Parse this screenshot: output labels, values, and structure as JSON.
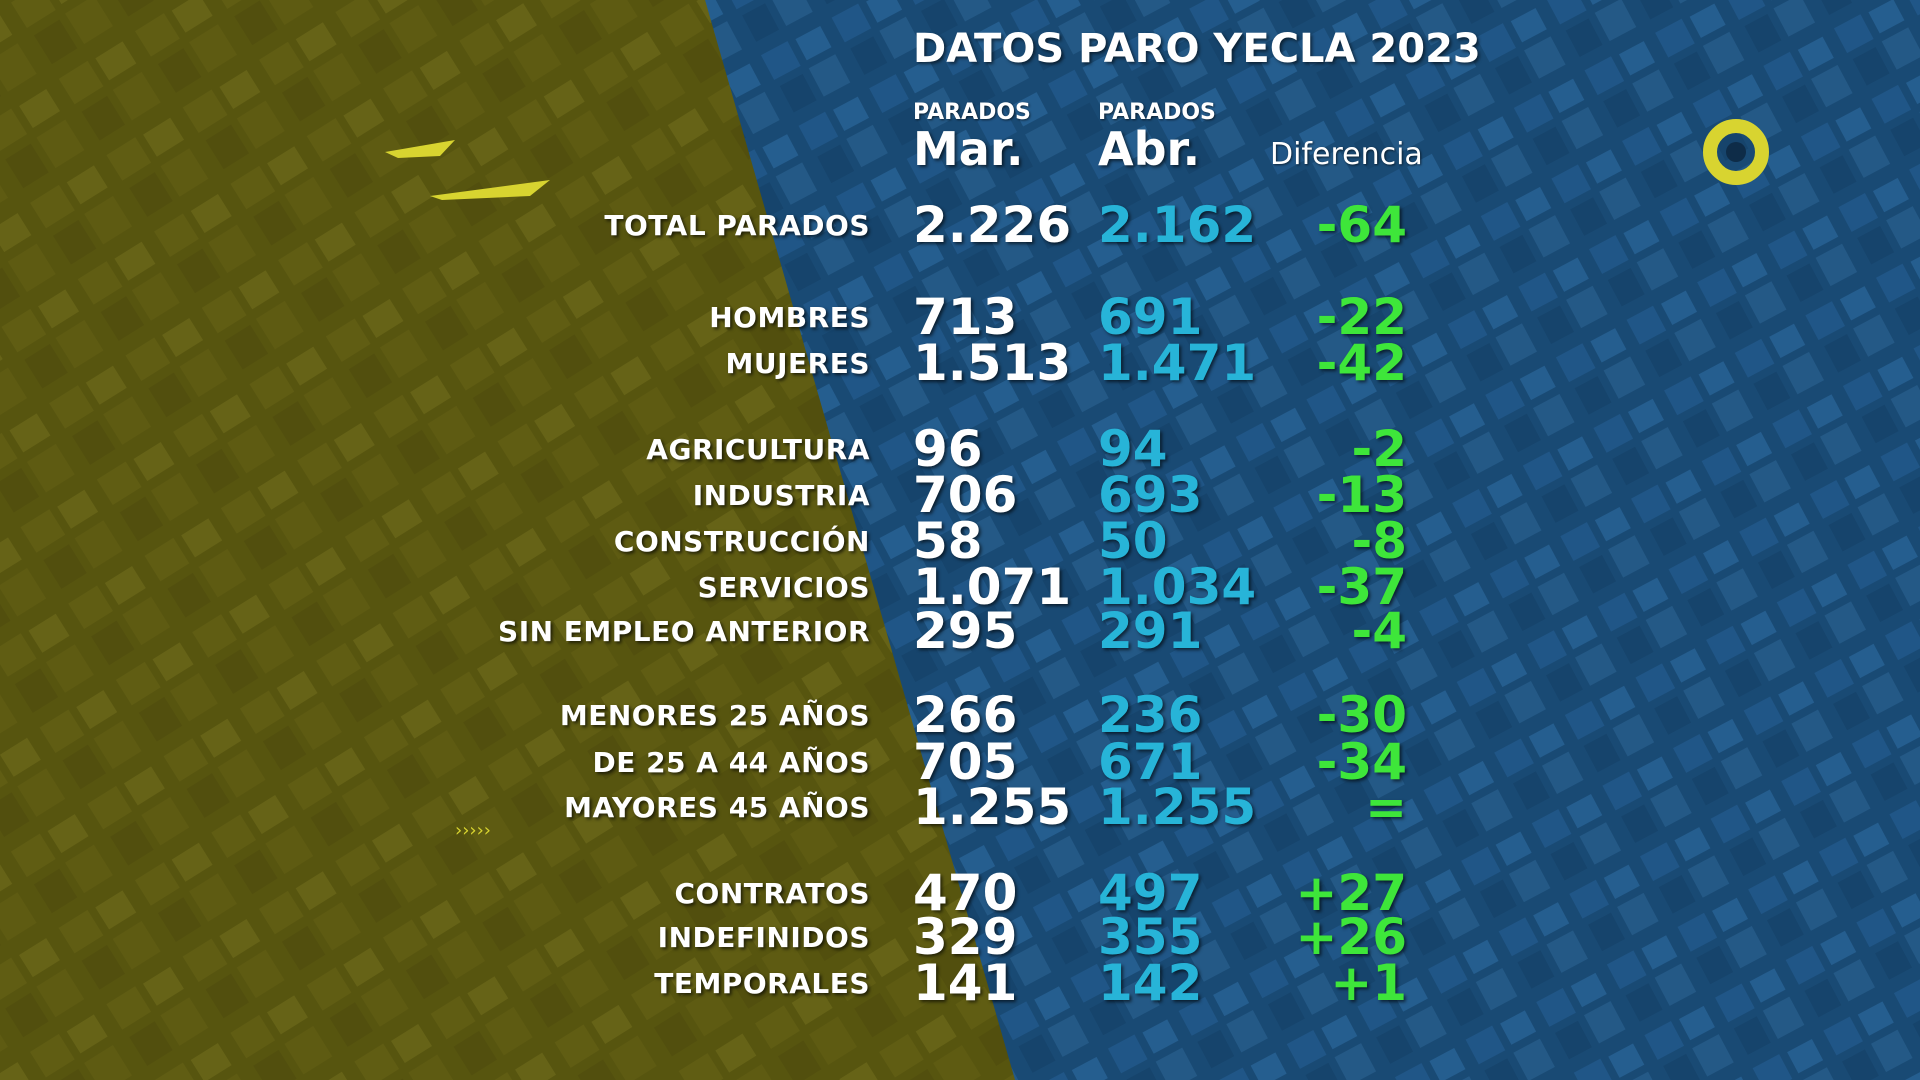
{
  "title": "DATOS PARO YECLA 2023",
  "columns": {
    "mar_small": "PARADOS",
    "mar_big": "Mar.",
    "abr_small": "PARADOS",
    "abr_big": "Abr.",
    "diff": "Diferencia"
  },
  "colors": {
    "left_panel": "#6e6a14",
    "right_panel": "#1f5a8c",
    "mar_text": "#ffffff",
    "abr_text": "#27b4d8",
    "diff_text": "#3ee63a"
  },
  "rows": [
    {
      "label": "TOTAL PARADOS",
      "mar": "2.226",
      "abr": "2.162",
      "diff": "-64"
    },
    {
      "label": "HOMBRES",
      "mar": "713",
      "abr": "691",
      "diff": "-22"
    },
    {
      "label": "MUJERES",
      "mar": "1.513",
      "abr": "1.471",
      "diff": "-42"
    },
    {
      "label": "AGRICULTURA",
      "mar": "96",
      "abr": "94",
      "diff": "-2"
    },
    {
      "label": "INDUSTRIA",
      "mar": "706",
      "abr": "693",
      "diff": "-13"
    },
    {
      "label": "CONSTRUCCIÓN",
      "mar": "58",
      "abr": "50",
      "diff": "-8"
    },
    {
      "label": "SERVICIOS",
      "mar": "1.071",
      "abr": "1.034",
      "diff": "-37"
    },
    {
      "label": "SIN EMPLEO ANTERIOR",
      "mar": "295",
      "abr": "291",
      "diff": "-4"
    },
    {
      "label": "MENORES  25 AÑOS",
      "mar": "266",
      "abr": "236",
      "diff": "-30"
    },
    {
      "label": "DE 25 A 44 AÑOS",
      "mar": "705",
      "abr": "671",
      "diff": "-34"
    },
    {
      "label": "MAYORES  45 AÑOS",
      "mar": "1.255",
      "abr": "1.255",
      "diff": "="
    },
    {
      "label": "CONTRATOS",
      "mar": "470",
      "abr": "497",
      "diff": "+27"
    },
    {
      "label": "INDEFINIDOS",
      "mar": "329",
      "abr": "355",
      "diff": "+26"
    },
    {
      "label": "TEMPORALES",
      "mar": "141",
      "abr": "142",
      "diff": "+1"
    }
  ]
}
